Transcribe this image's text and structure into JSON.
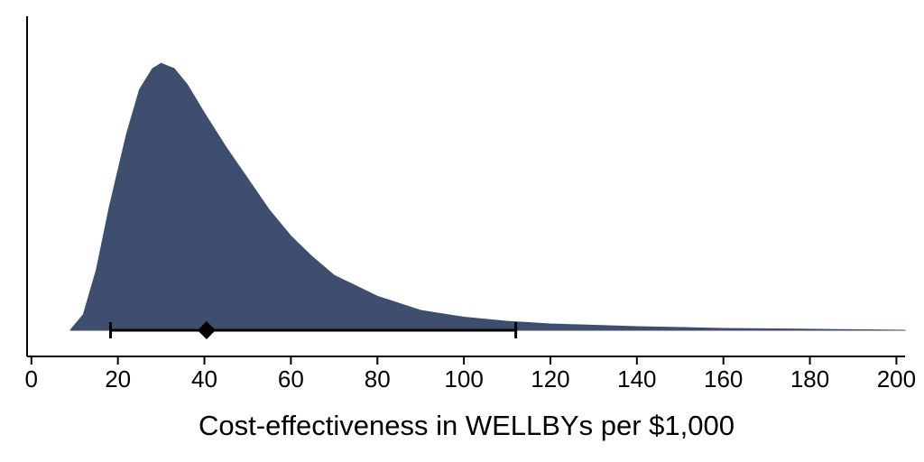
{
  "chart_data": {
    "type": "density",
    "xlabel": "Cost-effectiveness in WELLBYs per $1,000",
    "x": [
      9,
      12,
      15,
      18,
      20,
      22,
      25,
      28,
      30,
      33,
      36,
      40,
      45,
      50,
      55,
      60,
      65,
      70,
      75,
      80,
      90,
      100,
      110,
      120,
      140,
      160,
      180,
      202
    ],
    "values": [
      0,
      0.06,
      0.23,
      0.47,
      0.61,
      0.75,
      0.92,
      1.0,
      1.02,
      1.0,
      0.94,
      0.83,
      0.7,
      0.58,
      0.46,
      0.36,
      0.28,
      0.21,
      0.17,
      0.13,
      0.076,
      0.05,
      0.034,
      0.024,
      0.014,
      0.007,
      0.004,
      0
    ],
    "color": "#3d4e6e",
    "interval": {
      "low": 18.3,
      "point": 40.5,
      "high": 112
    },
    "xlim": [
      -1,
      202
    ],
    "ylim": [
      -0.1,
      1.2
    ],
    "xticks": [
      0,
      20,
      40,
      60,
      80,
      100,
      120,
      140,
      160,
      180,
      200
    ]
  }
}
